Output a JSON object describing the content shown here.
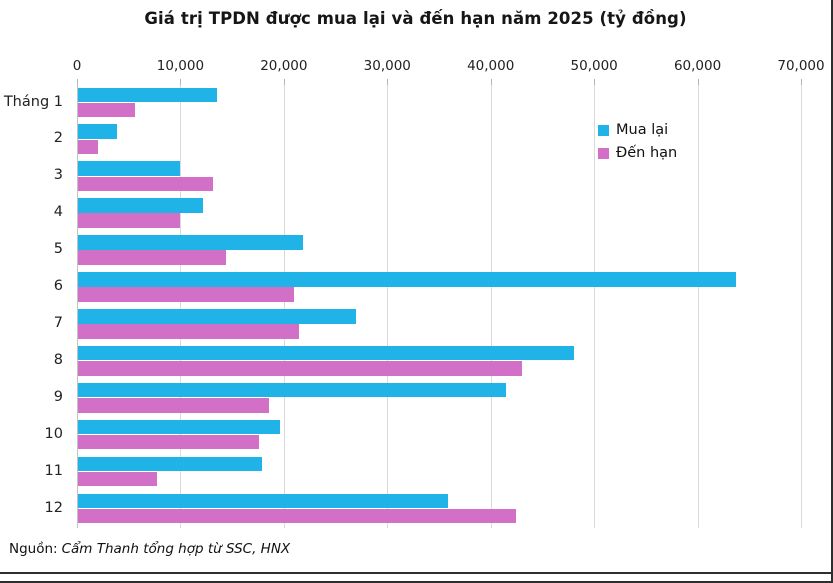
{
  "title": "Giá trị TPDN được mua lại và đến hạn năm 2025 (tỷ đồng)",
  "source": {
    "prefix": "Nguồn:",
    "text": "Cẩm Thanh tổng hợp từ SSC, HNX"
  },
  "colors": {
    "mua_lai": "#1fb3e8",
    "den_han": "#d26fc6",
    "gridline": "#dadada",
    "axis_line": "#c2c2c2",
    "text": "#1a1a1a"
  },
  "chart_data": {
    "type": "bar",
    "orientation": "horizontal",
    "title": "Giá trị TPDN được mua lại và đến hạn năm 2025 (tỷ đồng)",
    "xlabel": "",
    "ylabel": "",
    "categories": [
      "Tháng 1",
      "2",
      "3",
      "4",
      "5",
      "6",
      "7",
      "8",
      "9",
      "10",
      "11",
      "12"
    ],
    "series": [
      {
        "name": "Mua lại",
        "color": "#1fb3e8",
        "values": [
          13400,
          3800,
          9900,
          12100,
          21800,
          63600,
          26900,
          48000,
          41400,
          19500,
          17800,
          35800
        ]
      },
      {
        "name": "Đến hạn",
        "color": "#d26fc6",
        "values": [
          5500,
          1900,
          13100,
          9900,
          14300,
          20900,
          21400,
          42900,
          18500,
          17500,
          7600,
          42300
        ]
      }
    ],
    "x_ticks": [
      "0",
      "10,000",
      "20,000",
      "30,000",
      "40,000",
      "50,000",
      "60,000",
      "70,000"
    ],
    "x_tick_values": [
      0,
      10000,
      20000,
      30000,
      40000,
      50000,
      60000,
      70000
    ],
    "xlim": [
      0,
      72900
    ],
    "grid": true,
    "legend_position": "inside-right-top",
    "units": "tỷ đồng"
  }
}
